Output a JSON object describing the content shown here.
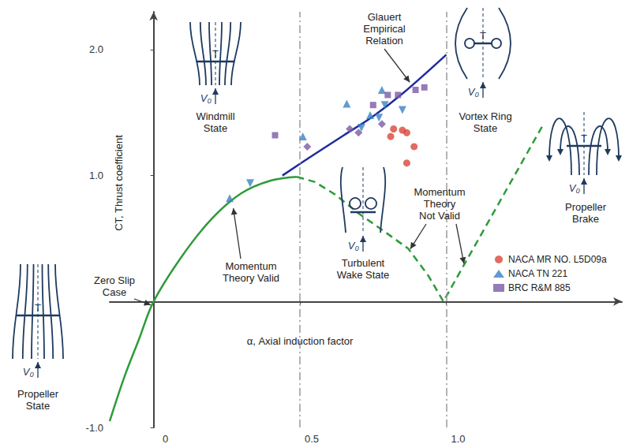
{
  "chart_data": {
    "type": "line",
    "x_label": "α, Axial induction factor",
    "y_label": "CT, Thrust coefficient",
    "xlim": [
      -0.15,
      1.6
    ],
    "xticks": [
      0,
      0.5,
      {
        "value": 1,
        "label": "1.0"
      }
    ],
    "ylim": [
      -1,
      2.3
    ],
    "yticks": [
      {
        "value": -1,
        "label": "-1.0"
      },
      {
        "value": 1,
        "label": "1.0"
      },
      {
        "value": 2,
        "label": "2.0"
      }
    ],
    "grid": false,
    "legend": "lower right",
    "vlines": [
      0.5,
      1
    ],
    "series": [
      {
        "type": "line",
        "color": "#2e9b3a",
        "line_style": "solid",
        "x": [
          -0.15,
          -0.1,
          -0.05,
          0,
          0.1,
          0.2,
          0.3,
          0.4,
          0.49
        ],
        "values": [
          -0.95,
          -0.6,
          -0.3,
          0,
          0.37,
          0.66,
          0.86,
          0.96,
          0.99
        ]
      },
      {
        "type": "line",
        "color": "#2e9b3a",
        "line_style": "dashed",
        "x": [
          0.49,
          0.55,
          0.62,
          0.7,
          0.78,
          0.87,
          0.94,
          0.99,
          1.33
        ],
        "values": [
          0.99,
          0.95,
          0.85,
          0.7,
          0.57,
          0.42,
          0.2,
          0,
          1.4
        ]
      },
      {
        "type": "line",
        "color": "#1f2a9c",
        "line_style": "solid",
        "x": [
          0.44,
          0.55,
          0.65,
          0.75,
          0.85,
          1.0
        ],
        "values": [
          1.0,
          1.17,
          1.32,
          1.47,
          1.65,
          1.96
        ]
      },
      {
        "type": "scatter",
        "name": "NACA MR NO. L5D09a",
        "color": "#d9463b",
        "marker": "circle",
        "x": [
          0.82,
          0.85,
          0.865,
          0.81,
          0.89,
          0.865
        ],
        "values": [
          1.37,
          1.36,
          1.34,
          1.31,
          1.23,
          1.1
        ]
      },
      {
        "type": "scatter",
        "name": "NACA TN 221",
        "color": "#3a82c4",
        "marker": "triangle",
        "x": [
          0.26,
          0.51,
          0.78,
          0.66,
          0.74
        ],
        "values": [
          0.82,
          1.31,
          1.68,
          1.57,
          1.48
        ]
      },
      {
        "type": "scatter",
        "name": "NACA TN 221",
        "color": "#3a82c4",
        "marker": "triangle-down",
        "x": [
          0.33,
          0.79,
          0.85,
          0.77,
          0.71
        ],
        "values": [
          0.94,
          1.56,
          1.52,
          1.46,
          1.38
        ]
      },
      {
        "type": "scatter",
        "name": "BRC R&M 885",
        "color": "#7b5aa6",
        "marker": "square",
        "x": [
          0.415,
          0.75,
          0.8,
          0.835,
          0.895,
          0.925
        ],
        "values": [
          1.32,
          1.56,
          1.64,
          1.64,
          1.68,
          1.7
        ]
      },
      {
        "type": "scatter",
        "name": "BRC R&M 885",
        "color": "#7b5aa6",
        "marker": "diamond",
        "x": [
          0.525,
          0.67,
          0.7,
          0.78
        ],
        "values": [
          1.23,
          1.37,
          1.34,
          1.41
        ]
      }
    ],
    "annotations": [
      "Glauert Empirical Relation",
      "Windmill State",
      "Vortex Ring State",
      "Propeller Brake",
      "Turbulent Wake State",
      "Momentum Theory Not Valid",
      "Momentum Theory Valid",
      "Zero Slip Case",
      "Propeller State"
    ],
    "thrust_label": "T",
    "velocity_label": "V₀"
  }
}
